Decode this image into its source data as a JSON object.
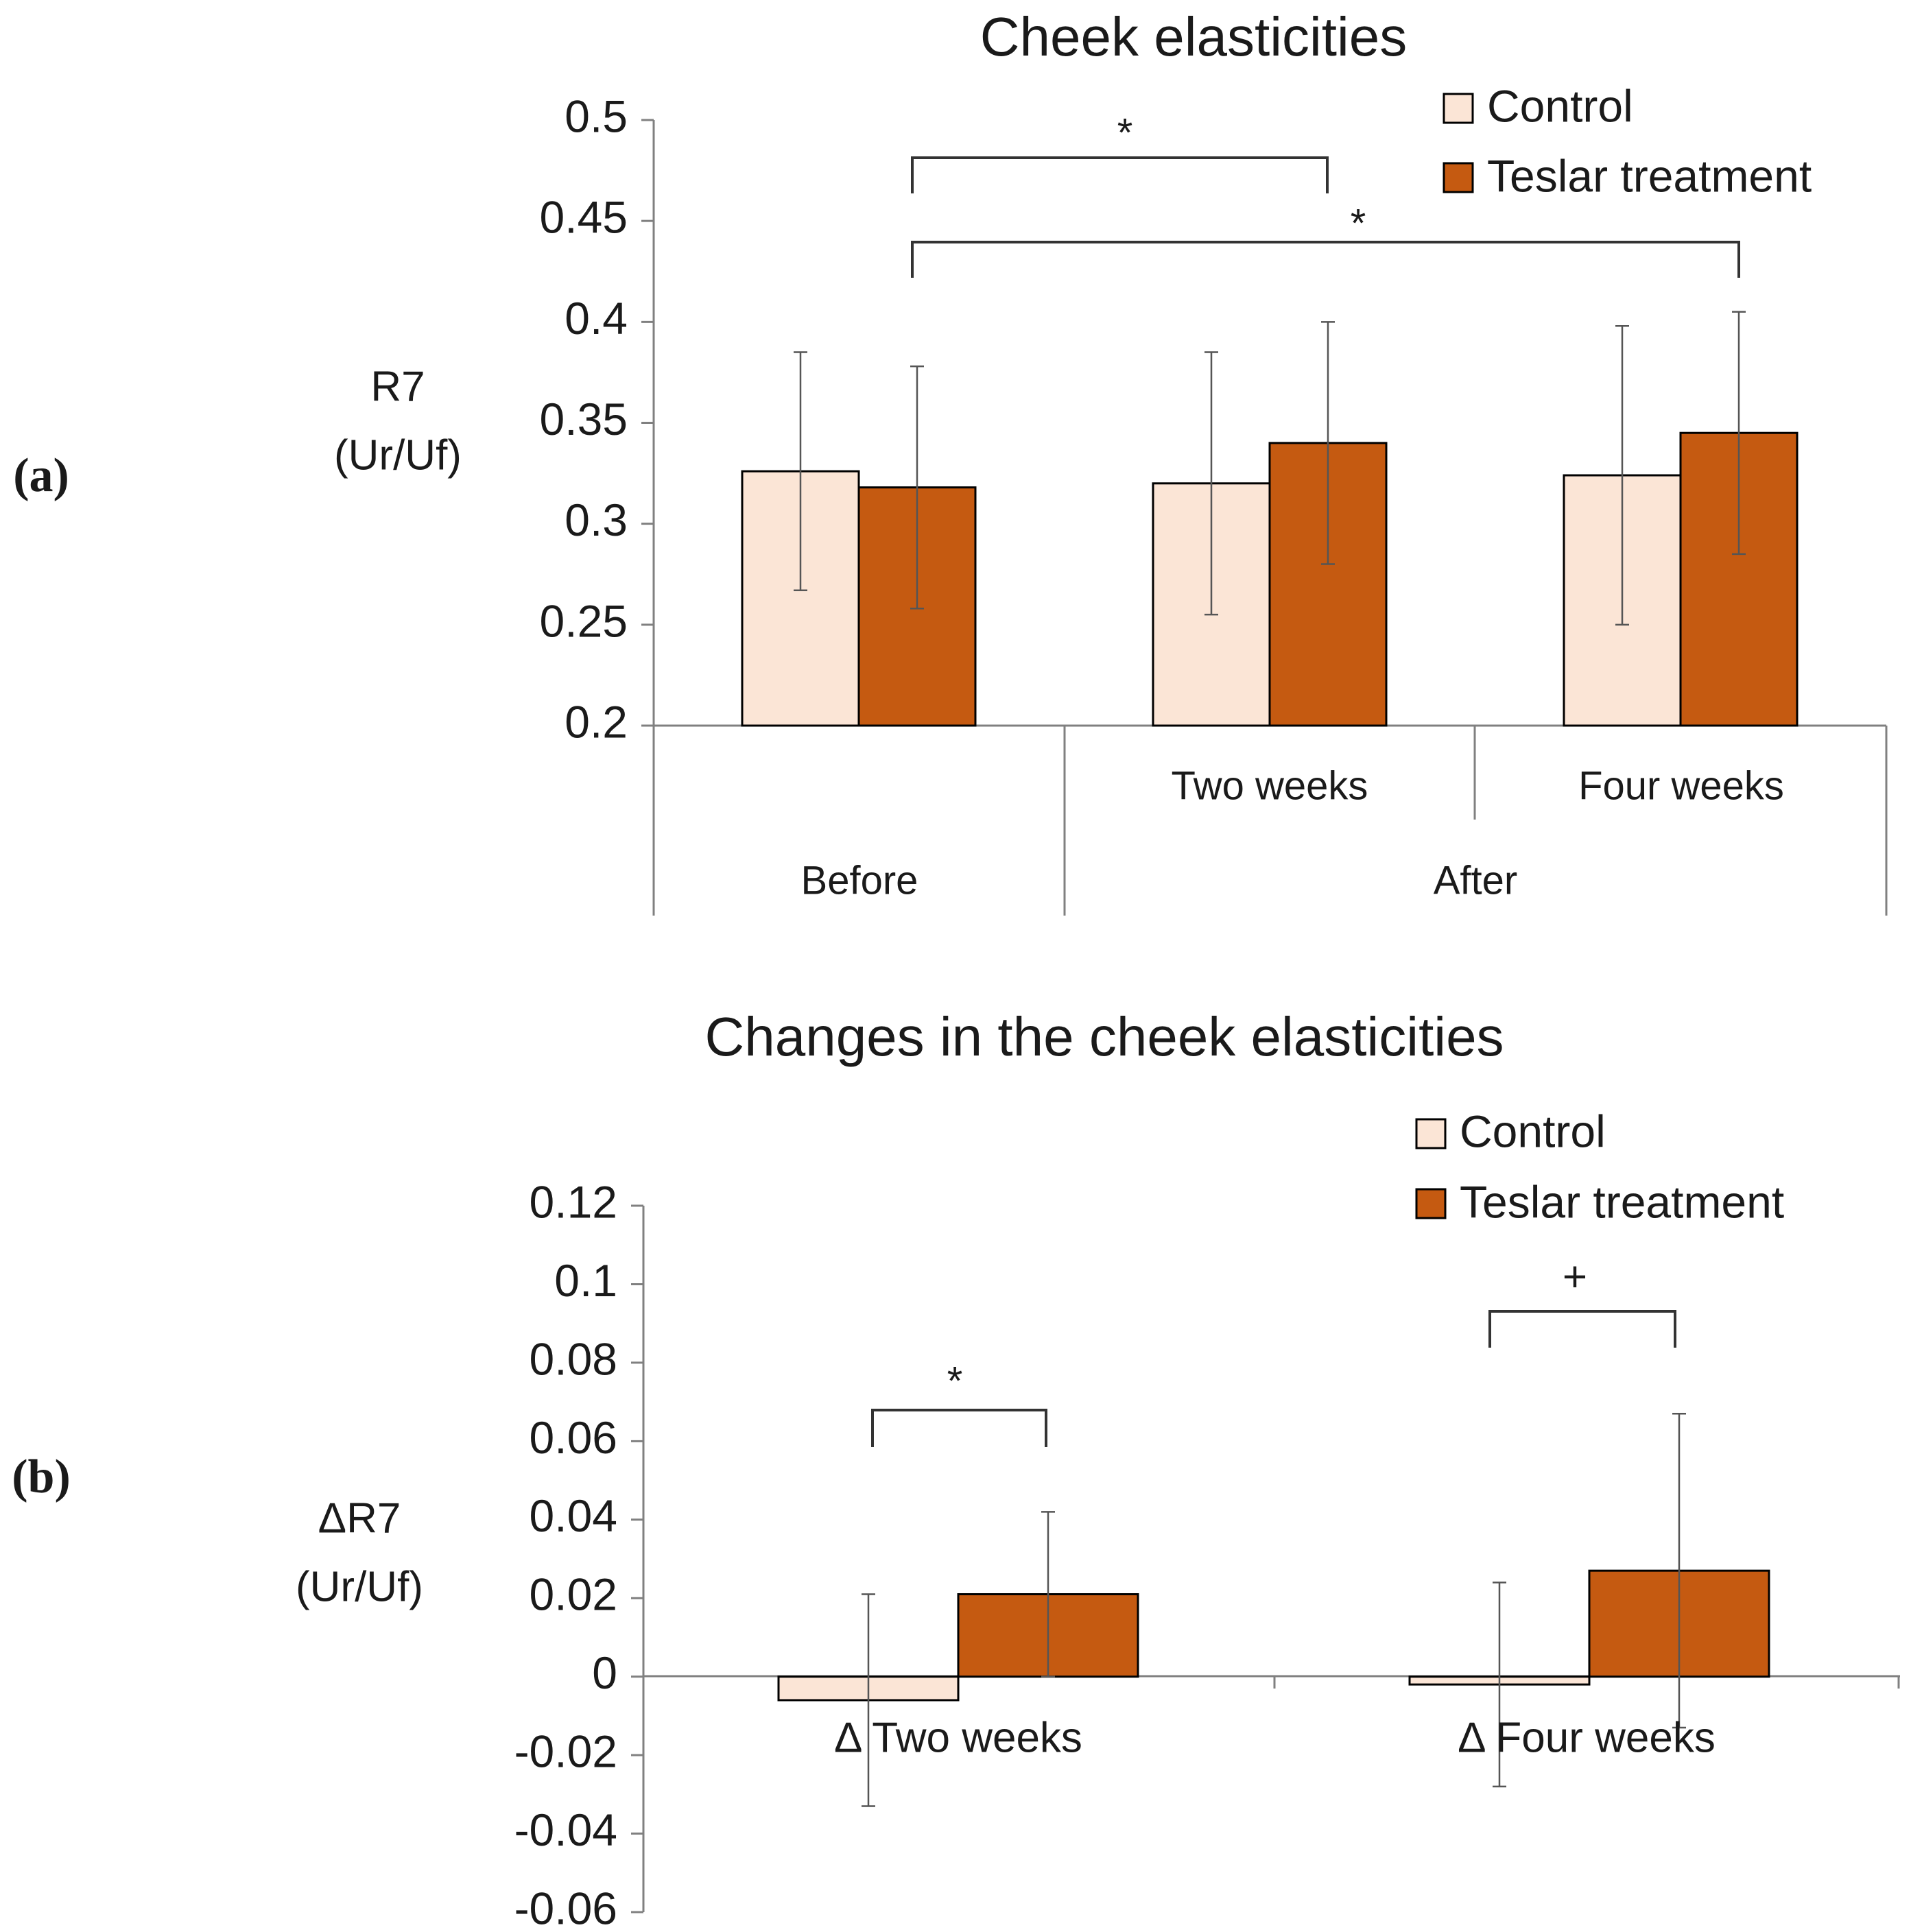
{
  "colors": {
    "control": "#FBE5D6",
    "treatment": "#C55A11",
    "axis": "#808080",
    "edge": "#000000",
    "text": "#1a1a1a"
  },
  "chart_data": [
    {
      "panel_label": "(a)",
      "type": "bar",
      "title": "Cheek elasticities",
      "ylabel": [
        "R7",
        "(Ur/Uf)"
      ],
      "ylim": [
        0.2,
        0.5
      ],
      "yticks": [
        "0.5",
        "0.45",
        "0.4",
        "0.35",
        "0.3",
        "0.25",
        "0.2"
      ],
      "categories": [
        "Before",
        "Two weeks",
        "Four weeks"
      ],
      "category_groups": [
        {
          "label": "Before",
          "members": [
            "Before"
          ]
        },
        {
          "label": "After",
          "members": [
            "Two weeks",
            "Four weeks"
          ]
        }
      ],
      "series": [
        {
          "name": "Control",
          "values": [
            0.326,
            0.32,
            0.324
          ],
          "errors": [
            0.059,
            0.065,
            0.074
          ]
        },
        {
          "name": "Teslar treatment",
          "values": [
            0.318,
            0.34,
            0.345
          ],
          "errors": [
            0.06,
            0.06,
            0.06
          ]
        }
      ],
      "legend": [
        "Control",
        "Teslar treatment"
      ],
      "significance": [
        {
          "label": "*",
          "from": "Before",
          "to": "Two weeks"
        },
        {
          "label": "*",
          "from": "Before",
          "to": "Four weeks"
        }
      ]
    },
    {
      "panel_label": "(b)",
      "type": "bar",
      "title": "Changes in the cheek elasticities",
      "ylabel": [
        "ΔR7",
        "(Ur/Uf)"
      ],
      "ylim": [
        -0.06,
        0.12
      ],
      "yticks": [
        "0.12",
        "0.1",
        "0.08",
        "0.06",
        "0.04",
        "0.02",
        "0",
        "-0.02",
        "-0.04",
        "-0.06"
      ],
      "categories": [
        "Δ Two weeks",
        "Δ Four weeks"
      ],
      "series": [
        {
          "name": "Control",
          "values": [
            -0.006,
            -0.002
          ],
          "errors": [
            0.027,
            0.026
          ]
        },
        {
          "name": "Teslar treatment",
          "values": [
            0.021,
            0.027
          ],
          "errors": [
            0.021,
            0.04
          ]
        }
      ],
      "legend": [
        "Control",
        "Teslar treatment"
      ],
      "significance": [
        {
          "label": "*",
          "category": "Δ Two weeks"
        },
        {
          "label": "+",
          "category": "Δ Four weeks"
        }
      ]
    }
  ]
}
